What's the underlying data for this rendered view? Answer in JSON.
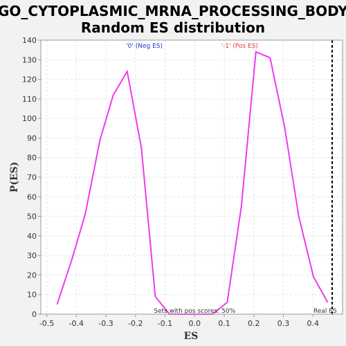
{
  "chart_data": {
    "type": "line",
    "title_line1": "GO_CYTOPLASMIC_MRNA_PROCESSING_BODY:",
    "title_line2": "Random ES distribution",
    "xlabel": "ES",
    "ylabel": "P(ES)",
    "xlim": [
      -0.52,
      0.5
    ],
    "ylim": [
      0,
      140
    ],
    "xticks": [
      -0.5,
      -0.4,
      -0.3,
      -0.2,
      -0.1,
      0.0,
      0.1,
      0.2,
      0.3,
      0.4
    ],
    "xtick_labels": [
      "-0.5",
      "-0.4",
      "-0.3",
      "-0.2",
      "-0.1",
      "0.0",
      "0.1",
      "0.2",
      "0.3",
      "0.4"
    ],
    "yticks": [
      0,
      10,
      20,
      30,
      40,
      50,
      60,
      70,
      80,
      90,
      100,
      110,
      120,
      130,
      140
    ],
    "grid": true,
    "series": [
      {
        "color": "#ee3aee",
        "x": [
          -0.465,
          -0.415,
          -0.37,
          -0.32,
          -0.275,
          -0.228,
          -0.18,
          -0.133,
          -0.085,
          0.0,
          0.06,
          0.11,
          0.158,
          0.207,
          0.255,
          0.305,
          0.352,
          0.402,
          0.45
        ],
        "y": [
          5,
          28,
          51,
          89,
          112,
          124,
          85,
          9,
          0,
          0,
          0,
          6,
          55,
          134,
          131,
          95,
          50,
          19,
          6
        ]
      }
    ],
    "real_es": {
      "x": 0.465,
      "label": "Real ES"
    },
    "annotations": {
      "neg": {
        "text": "'0' (Neg ES)",
        "color": "#2b2bd6",
        "x": -0.17
      },
      "pos": {
        "text": "'-1' (Pos ES)",
        "color": "#e03a3a",
        "x": 0.152
      },
      "pos_scores": {
        "text": "Sets with pos scores: 50%",
        "x": 0.0
      }
    }
  }
}
